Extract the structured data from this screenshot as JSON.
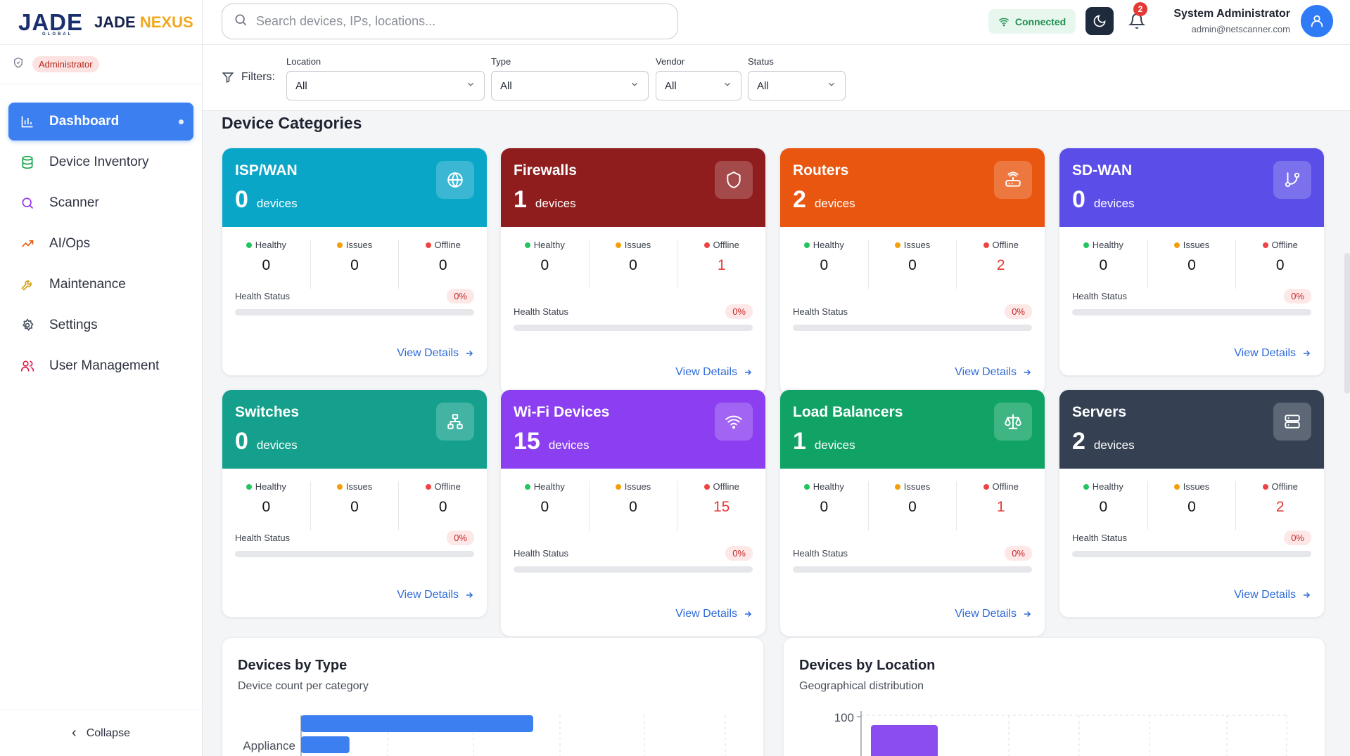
{
  "brand": {
    "logo_text": "JADE",
    "logo_sub": "GLOBAL",
    "app_name_1": "JADE",
    "app_name_2": "NEXUS"
  },
  "role": {
    "label": "Administrator"
  },
  "nav": {
    "items": [
      {
        "label": "Dashboard",
        "icon": "bar-chart-icon",
        "active": true
      },
      {
        "label": "Device Inventory",
        "icon": "database-icon"
      },
      {
        "label": "Scanner",
        "icon": "search-icon"
      },
      {
        "label": "AI/Ops",
        "icon": "trending-up-icon"
      },
      {
        "label": "Maintenance",
        "icon": "wrench-icon"
      },
      {
        "label": "Settings",
        "icon": "gear-icon"
      },
      {
        "label": "User Management",
        "icon": "users-icon"
      }
    ],
    "collapse_label": "Collapse"
  },
  "header": {
    "search_placeholder": "Search devices, IPs, locations...",
    "connection_status": "Connected",
    "notification_count": "2",
    "user_name": "System Administrator",
    "user_email": "admin@netscanner.com"
  },
  "filters": {
    "label": "Filters:",
    "groups": [
      {
        "label": "Location",
        "value": "All"
      },
      {
        "label": "Type",
        "value": "All"
      },
      {
        "label": "Vendor",
        "value": "All"
      },
      {
        "label": "Status",
        "value": "All"
      }
    ]
  },
  "section_title": "Device Categories",
  "stat_labels": {
    "healthy": "Healthy",
    "issues": "Issues",
    "offline": "Offline",
    "health_status": "Health Status",
    "view_details": "View Details",
    "devices": "devices"
  },
  "colors": {
    "healthy": "#22c55e",
    "issues": "#f59e0b",
    "offline": "#ef4444",
    "accent": "#3b7ff0"
  },
  "categories": [
    {
      "title": "ISP/WAN",
      "count": "0",
      "healthy": "0",
      "issues": "0",
      "offline": "0",
      "health_pct": "0%",
      "health_value": 0,
      "icon": "globe-icon",
      "color": "#0aa6c8"
    },
    {
      "title": "Firewalls",
      "count": "1",
      "healthy": "0",
      "issues": "0",
      "offline": "1",
      "health_pct": "0%",
      "health_value": 0,
      "icon": "shield-icon",
      "color": "#8f1d1d"
    },
    {
      "title": "Routers",
      "count": "2",
      "healthy": "0",
      "issues": "0",
      "offline": "2",
      "health_pct": "0%",
      "health_value": 0,
      "icon": "router-icon",
      "color": "#e8560f"
    },
    {
      "title": "SD-WAN",
      "count": "0",
      "healthy": "0",
      "issues": "0",
      "offline": "0",
      "health_pct": "0%",
      "health_value": 0,
      "icon": "git-branch-icon",
      "color": "#5b4ee8"
    },
    {
      "title": "Switches",
      "count": "0",
      "healthy": "0",
      "issues": "0",
      "offline": "0",
      "health_pct": "0%",
      "health_value": 0,
      "icon": "network-icon",
      "color": "#14a08c"
    },
    {
      "title": "Wi-Fi Devices",
      "count": "15",
      "healthy": "0",
      "issues": "0",
      "offline": "15",
      "health_pct": "0%",
      "health_value": 0,
      "icon": "wifi-icon",
      "color": "#8b3ff0"
    },
    {
      "title": "Load Balancers",
      "count": "1",
      "healthy": "0",
      "issues": "0",
      "offline": "1",
      "health_pct": "0%",
      "health_value": 0,
      "icon": "scale-icon",
      "color": "#11a366"
    },
    {
      "title": "Servers",
      "count": "2",
      "healthy": "0",
      "issues": "0",
      "offline": "2",
      "health_pct": "0%",
      "health_value": 0,
      "icon": "server-icon",
      "color": "#354153"
    }
  ],
  "charts": {
    "by_type": {
      "title": "Devices by Type",
      "subtitle": "Device count per category"
    },
    "by_location": {
      "title": "Devices by Location",
      "subtitle": "Geographical distribution"
    }
  },
  "chart_data": [
    {
      "type": "bar",
      "orientation": "horizontal",
      "title": "Devices by Type",
      "subtitle": "Device count per category",
      "categories": [
        "Appliance"
      ],
      "values": [
        15
      ],
      "grid": true
    },
    {
      "type": "bar",
      "title": "Devices by Location",
      "subtitle": "Geographical distribution",
      "y_ticks": [
        "100"
      ],
      "grid": true
    }
  ]
}
